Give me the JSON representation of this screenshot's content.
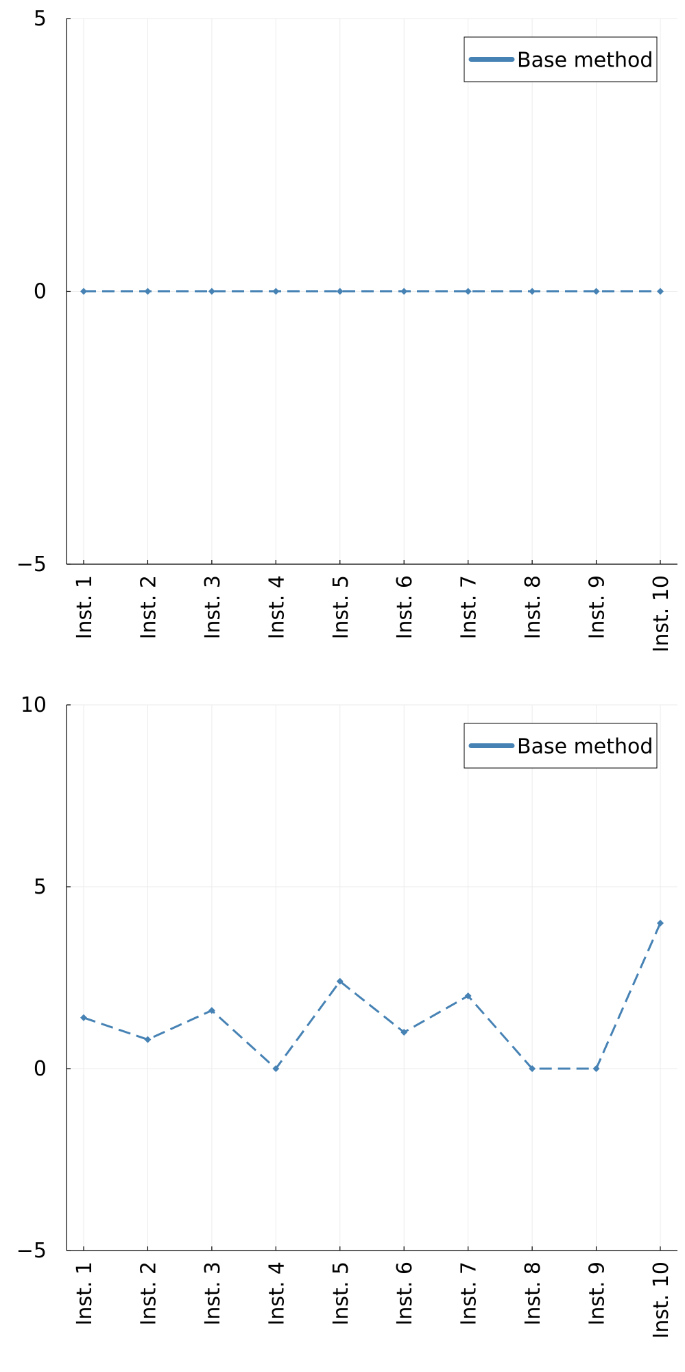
{
  "chart_data": [
    {
      "type": "line",
      "categories": [
        "Inst. 1",
        "Inst. 2",
        "Inst. 3",
        "Inst. 4",
        "Inst. 5",
        "Inst. 6",
        "Inst. 7",
        "Inst. 8",
        "Inst. 9",
        "Inst. 10"
      ],
      "series": [
        {
          "name": "Base method",
          "values": [
            0,
            0,
            0,
            0,
            0,
            0,
            0,
            0,
            0,
            0
          ],
          "color": "#4682b4",
          "line_style": "dashed",
          "marker": "diamond"
        }
      ],
      "title": "",
      "xlabel": "",
      "ylabel": "",
      "ylim": [
        -5,
        5
      ],
      "yticks": [
        -5,
        0,
        5
      ],
      "yticklabels": [
        "−5",
        "0",
        "5"
      ],
      "grid": true,
      "legend_position": "top-right"
    },
    {
      "type": "line",
      "categories": [
        "Inst. 1",
        "Inst. 2",
        "Inst. 3",
        "Inst. 4",
        "Inst. 5",
        "Inst. 6",
        "Inst. 7",
        "Inst. 8",
        "Inst. 9",
        "Inst. 10"
      ],
      "series": [
        {
          "name": "Base method",
          "values": [
            1.4,
            0.8,
            1.6,
            0,
            2.4,
            1.0,
            2.0,
            0,
            0,
            4.0
          ],
          "color": "#4682b4",
          "line_style": "dashed",
          "marker": "diamond"
        }
      ],
      "title": "",
      "xlabel": "",
      "ylabel": "",
      "ylim": [
        -5,
        10
      ],
      "yticks": [
        -5,
        0,
        5,
        10
      ],
      "yticklabels": [
        "−5",
        "0",
        "5",
        "10"
      ],
      "grid": true,
      "legend_position": "top-right"
    }
  ]
}
